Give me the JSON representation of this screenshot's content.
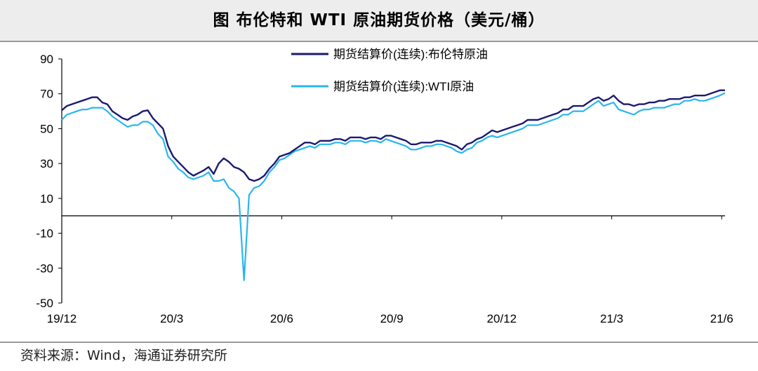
{
  "title": "图  布伦特和 WTI 原油期货价格（美元/桶）",
  "source": "资料来源：Wind，海通证券研究所",
  "chart_data": {
    "type": "line",
    "yticks": [
      90,
      70,
      50,
      30,
      10,
      -10,
      -30,
      -50
    ],
    "ylim": [
      -50,
      90
    ],
    "xticks": [
      "19/12",
      "20/3",
      "20/6",
      "20/9",
      "20/12",
      "21/3",
      "21/6"
    ],
    "grid": false,
    "legend_position": "top",
    "colors": {
      "brent": "#1a1a6e",
      "wti": "#29b6ee"
    },
    "series": [
      {
        "name": "期货结算价(连续):布伦特原油",
        "values": [
          60.5,
          63,
          64,
          65,
          66,
          67,
          68,
          68,
          65,
          64,
          60,
          58,
          56,
          55,
          57,
          58,
          60,
          60.5,
          56,
          53,
          50,
          40,
          34,
          31,
          28,
          25,
          23,
          24.5,
          26,
          28,
          24,
          30,
          33,
          31,
          28,
          27,
          25,
          21,
          20,
          21,
          23,
          27,
          30,
          34,
          35,
          36,
          38,
          40,
          42,
          42,
          41,
          43,
          43,
          43,
          44,
          44,
          43,
          45,
          45,
          45,
          44,
          45,
          45,
          44,
          46,
          46,
          45,
          44,
          43,
          41,
          41,
          42,
          42,
          42,
          43,
          43,
          42,
          41,
          40,
          38,
          41,
          42,
          44,
          45,
          47,
          49,
          48,
          49,
          50,
          51,
          52,
          53,
          55,
          55,
          55,
          56,
          57,
          58,
          59,
          61,
          61,
          63,
          63,
          63,
          65,
          67,
          68,
          66,
          67,
          69,
          66,
          64,
          64,
          63,
          64,
          64,
          65,
          65,
          66,
          66,
          67,
          67,
          67,
          68,
          68,
          69,
          69,
          69,
          70,
          71,
          72,
          72
        ]
      },
      {
        "name": "期货结算价(连续):WTI原油",
        "values": [
          55,
          58,
          59,
          60,
          61,
          61,
          62,
          62,
          62,
          60,
          57,
          55,
          53,
          51,
          52,
          52,
          54,
          54,
          52,
          47,
          44,
          34,
          31,
          27,
          25,
          22,
          21,
          22,
          23,
          25,
          20,
          20,
          21,
          16,
          14,
          10,
          -37,
          12,
          16,
          17,
          20,
          25,
          28,
          32,
          33,
          35,
          37,
          38,
          39,
          40,
          39,
          41,
          41,
          41,
          42,
          42,
          41,
          43,
          43,
          43,
          42,
          43,
          43,
          42,
          44,
          43,
          42,
          41,
          40,
          38,
          38,
          39,
          40,
          40,
          41,
          41,
          40,
          39,
          37,
          36,
          38,
          39,
          42,
          43,
          45,
          46,
          45,
          46,
          47,
          48,
          49,
          50,
          52,
          52,
          52,
          53,
          54,
          55,
          56,
          58,
          58,
          60,
          60,
          60,
          62,
          64,
          66,
          63,
          64,
          65,
          61,
          60,
          59,
          58,
          60,
          61,
          61,
          62,
          62,
          62,
          63,
          64,
          64,
          66,
          66,
          67,
          66,
          66,
          67,
          68,
          69,
          70.5
        ]
      }
    ]
  }
}
